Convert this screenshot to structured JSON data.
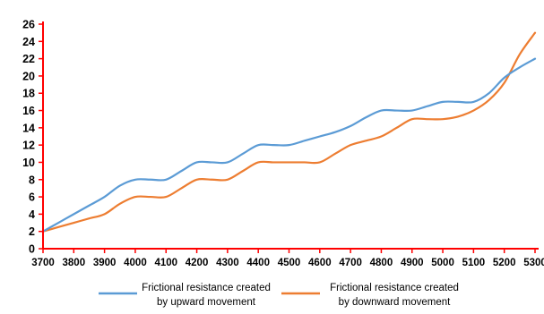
{
  "chart_data": {
    "type": "line",
    "xlabel": "",
    "ylabel": "",
    "xlim": [
      3700,
      5300
    ],
    "ylim": [
      0,
      26
    ],
    "x_ticks": [
      3700,
      3800,
      3900,
      4000,
      4100,
      4200,
      4300,
      4400,
      4500,
      4600,
      4700,
      4800,
      4900,
      5000,
      5100,
      5200,
      5300
    ],
    "x_tick_labels": [
      "3700",
      "3800",
      "3900",
      "4000",
      "4100",
      "4200",
      "4300",
      "4400",
      "4500",
      "4600",
      "4700",
      "4800",
      "4900",
      "5000",
      "5100",
      "5200",
      "5300"
    ],
    "y_ticks": [
      0,
      2,
      4,
      6,
      8,
      10,
      12,
      14,
      16,
      18,
      20,
      22,
      24,
      26
    ],
    "y_tick_labels": [
      "0",
      "2",
      "4",
      "6",
      "8",
      "10",
      "12",
      "14",
      "16",
      "18",
      "20",
      "22",
      "24",
      "26"
    ],
    "grid": false,
    "legend_position": "bottom",
    "axis_color": "#ff0000",
    "series": [
      {
        "name": "Frictional resistance created\nby upward movement",
        "legend_line1": "Frictional resistance created",
        "legend_line2": "by upward movement",
        "color": "#5b9bd5",
        "x": [
          3700,
          3750,
          3800,
          3850,
          3900,
          3950,
          4000,
          4050,
          4100,
          4150,
          4200,
          4250,
          4300,
          4350,
          4400,
          4450,
          4500,
          4550,
          4600,
          4650,
          4700,
          4750,
          4800,
          4850,
          4900,
          4950,
          5000,
          5050,
          5100,
          5150,
          5200,
          5250,
          5300
        ],
        "y": [
          2.0,
          3.0,
          4.0,
          5.0,
          6.0,
          7.3,
          8.0,
          8.0,
          8.0,
          9.0,
          10.0,
          10.0,
          10.0,
          11.0,
          12.0,
          12.0,
          12.0,
          12.5,
          13.0,
          13.5,
          14.2,
          15.2,
          16.0,
          16.0,
          16.0,
          16.5,
          17.0,
          17.0,
          17.0,
          18.0,
          19.8,
          21.0,
          22.0
        ]
      },
      {
        "name": "Frictional resistance created\nby downward movement",
        "legend_line1": "Frictional resistance created",
        "legend_line2": "by downward movement",
        "color": "#ed7d31",
        "x": [
          3700,
          3750,
          3800,
          3850,
          3900,
          3950,
          4000,
          4050,
          4100,
          4150,
          4200,
          4250,
          4300,
          4350,
          4400,
          4450,
          4500,
          4550,
          4600,
          4650,
          4700,
          4750,
          4800,
          4850,
          4900,
          4950,
          5000,
          5050,
          5100,
          5150,
          5200,
          5250,
          5300
        ],
        "y": [
          2.0,
          2.5,
          3.0,
          3.5,
          4.0,
          5.2,
          6.0,
          6.0,
          6.0,
          7.0,
          8.0,
          8.0,
          8.0,
          9.0,
          10.0,
          10.0,
          10.0,
          10.0,
          10.0,
          11.0,
          12.0,
          12.5,
          13.0,
          14.0,
          15.0,
          15.0,
          15.0,
          15.3,
          16.0,
          17.2,
          19.2,
          22.5,
          25.0
        ]
      }
    ]
  }
}
